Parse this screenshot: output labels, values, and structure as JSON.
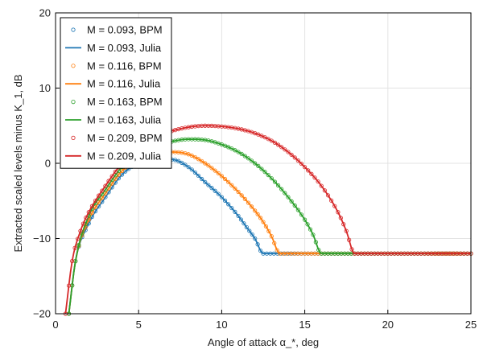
{
  "chart_data": {
    "type": "line",
    "xlabel": "Angle of attack α_*, deg",
    "ylabel": "Extracted scaled levels minus K_1, dB",
    "xlim": [
      0,
      25
    ],
    "ylim": [
      -20,
      20
    ],
    "xticks": [
      0,
      5,
      10,
      15,
      20,
      25
    ],
    "yticks": [
      -20,
      -10,
      0,
      10,
      20
    ],
    "grid": true,
    "legend_position": "top-left",
    "series": [
      {
        "name": "M = 0.093, BPM",
        "style": "markers",
        "color": "#1f77b4",
        "x": [
          0.8,
          1.2,
          2,
          3,
          4,
          5,
          6,
          7,
          8,
          9,
          10,
          11,
          11.5,
          12,
          12.5,
          14,
          16,
          18,
          20,
          22,
          24,
          25
        ],
        "y": [
          -20,
          -13,
          -8,
          -4.5,
          -1.5,
          0,
          0.5,
          0.5,
          -0.5,
          -2.5,
          -4.5,
          -7,
          -8.5,
          -10,
          -12,
          -12,
          -12,
          -12,
          -12,
          -12,
          -12,
          -12
        ]
      },
      {
        "name": "M = 0.093, Julia",
        "style": "line",
        "color": "#1f77b4",
        "x": [
          0.8,
          1.2,
          2,
          3,
          4,
          5,
          6,
          7,
          8,
          9,
          10,
          11,
          11.5,
          12,
          12.5,
          14,
          16,
          18,
          20,
          22,
          24,
          25
        ],
        "y": [
          -20,
          -13,
          -8,
          -4.5,
          -1.5,
          0,
          0.5,
          0.5,
          -0.5,
          -2.5,
          -4.5,
          -7,
          -8.5,
          -10,
          -12,
          -12,
          -12,
          -12,
          -12,
          -12,
          -12,
          -12
        ]
      },
      {
        "name": "M = 0.116, BPM",
        "style": "markers",
        "color": "#ff7f0e",
        "x": [
          0.8,
          1.2,
          2,
          3,
          4,
          5,
          6,
          7,
          8,
          9,
          10,
          11,
          12,
          12.5,
          13,
          13.5,
          15,
          17,
          19,
          21,
          23,
          25
        ],
        "y": [
          -20,
          -13,
          -7.5,
          -4,
          -1,
          0.5,
          1.2,
          1.5,
          1.2,
          0,
          -1.7,
          -3.8,
          -6.3,
          -7.8,
          -9.7,
          -12,
          -12,
          -12,
          -12,
          -12,
          -12,
          -12
        ]
      },
      {
        "name": "M = 0.116, Julia",
        "style": "line",
        "color": "#ff7f0e",
        "x": [
          0.8,
          1.2,
          2,
          3,
          4,
          5,
          6,
          7,
          8,
          9,
          10,
          11,
          12,
          12.5,
          13,
          13.5,
          15,
          17,
          19,
          21,
          23,
          25
        ],
        "y": [
          -20,
          -13,
          -7.5,
          -4,
          -1,
          0.5,
          1.2,
          1.5,
          1.2,
          0,
          -1.7,
          -3.8,
          -6.3,
          -7.8,
          -9.7,
          -12,
          -12,
          -12,
          -12,
          -12,
          -12,
          -12
        ]
      },
      {
        "name": "M = 0.163, BPM",
        "style": "markers",
        "color": "#2ca02c",
        "x": [
          0.8,
          1.2,
          2,
          3,
          4,
          5,
          6,
          7,
          8,
          9,
          10,
          11,
          12,
          13,
          14,
          15,
          15.5,
          16,
          18,
          20,
          22,
          25
        ],
        "y": [
          -20,
          -13,
          -7,
          -3.5,
          -0.5,
          1,
          2.2,
          2.9,
          3.2,
          3.1,
          2.5,
          1.5,
          0,
          -2,
          -4.5,
          -7.5,
          -9.5,
          -12,
          -12,
          -12,
          -12,
          -12
        ]
      },
      {
        "name": "M = 0.163, Julia",
        "style": "line",
        "color": "#2ca02c",
        "x": [
          0.8,
          1.2,
          2,
          3,
          4,
          5,
          6,
          7,
          8,
          9,
          10,
          11,
          12,
          13,
          14,
          15,
          15.5,
          16,
          18,
          20,
          22,
          25
        ],
        "y": [
          -20,
          -13,
          -7,
          -3.5,
          -0.5,
          1,
          2.2,
          2.9,
          3.2,
          3.1,
          2.5,
          1.5,
          0,
          -2,
          -4.5,
          -7.5,
          -9.5,
          -12,
          -12,
          -12,
          -12,
          -12
        ]
      },
      {
        "name": "M = 0.209, BPM",
        "style": "markers",
        "color": "#d62728",
        "x": [
          0.6,
          1.0,
          1.5,
          2,
          3,
          4,
          5,
          6,
          7,
          8,
          9,
          10,
          11,
          12,
          13,
          14,
          15,
          16,
          17,
          17.5,
          18,
          20,
          22,
          25
        ],
        "y": [
          -20,
          -13,
          -9,
          -6.5,
          -3,
          0,
          2,
          3.5,
          4.3,
          4.8,
          5,
          4.9,
          4.6,
          4,
          3,
          1.5,
          -0.5,
          -3,
          -6.5,
          -9,
          -12,
          -12,
          -12,
          -12
        ]
      },
      {
        "name": "M = 0.209, Julia",
        "style": "line",
        "color": "#d62728",
        "x": [
          0.6,
          1.0,
          1.5,
          2,
          3,
          4,
          5,
          6,
          7,
          8,
          9,
          10,
          11,
          12,
          13,
          14,
          15,
          16,
          17,
          17.5,
          18,
          20,
          22,
          25
        ],
        "y": [
          -20,
          -13,
          -9,
          -6.5,
          -3,
          0,
          2,
          3.5,
          4.3,
          4.8,
          5,
          4.9,
          4.6,
          4,
          3,
          1.5,
          -0.5,
          -3,
          -6.5,
          -9,
          -12,
          -12,
          -12,
          -12
        ]
      }
    ]
  }
}
